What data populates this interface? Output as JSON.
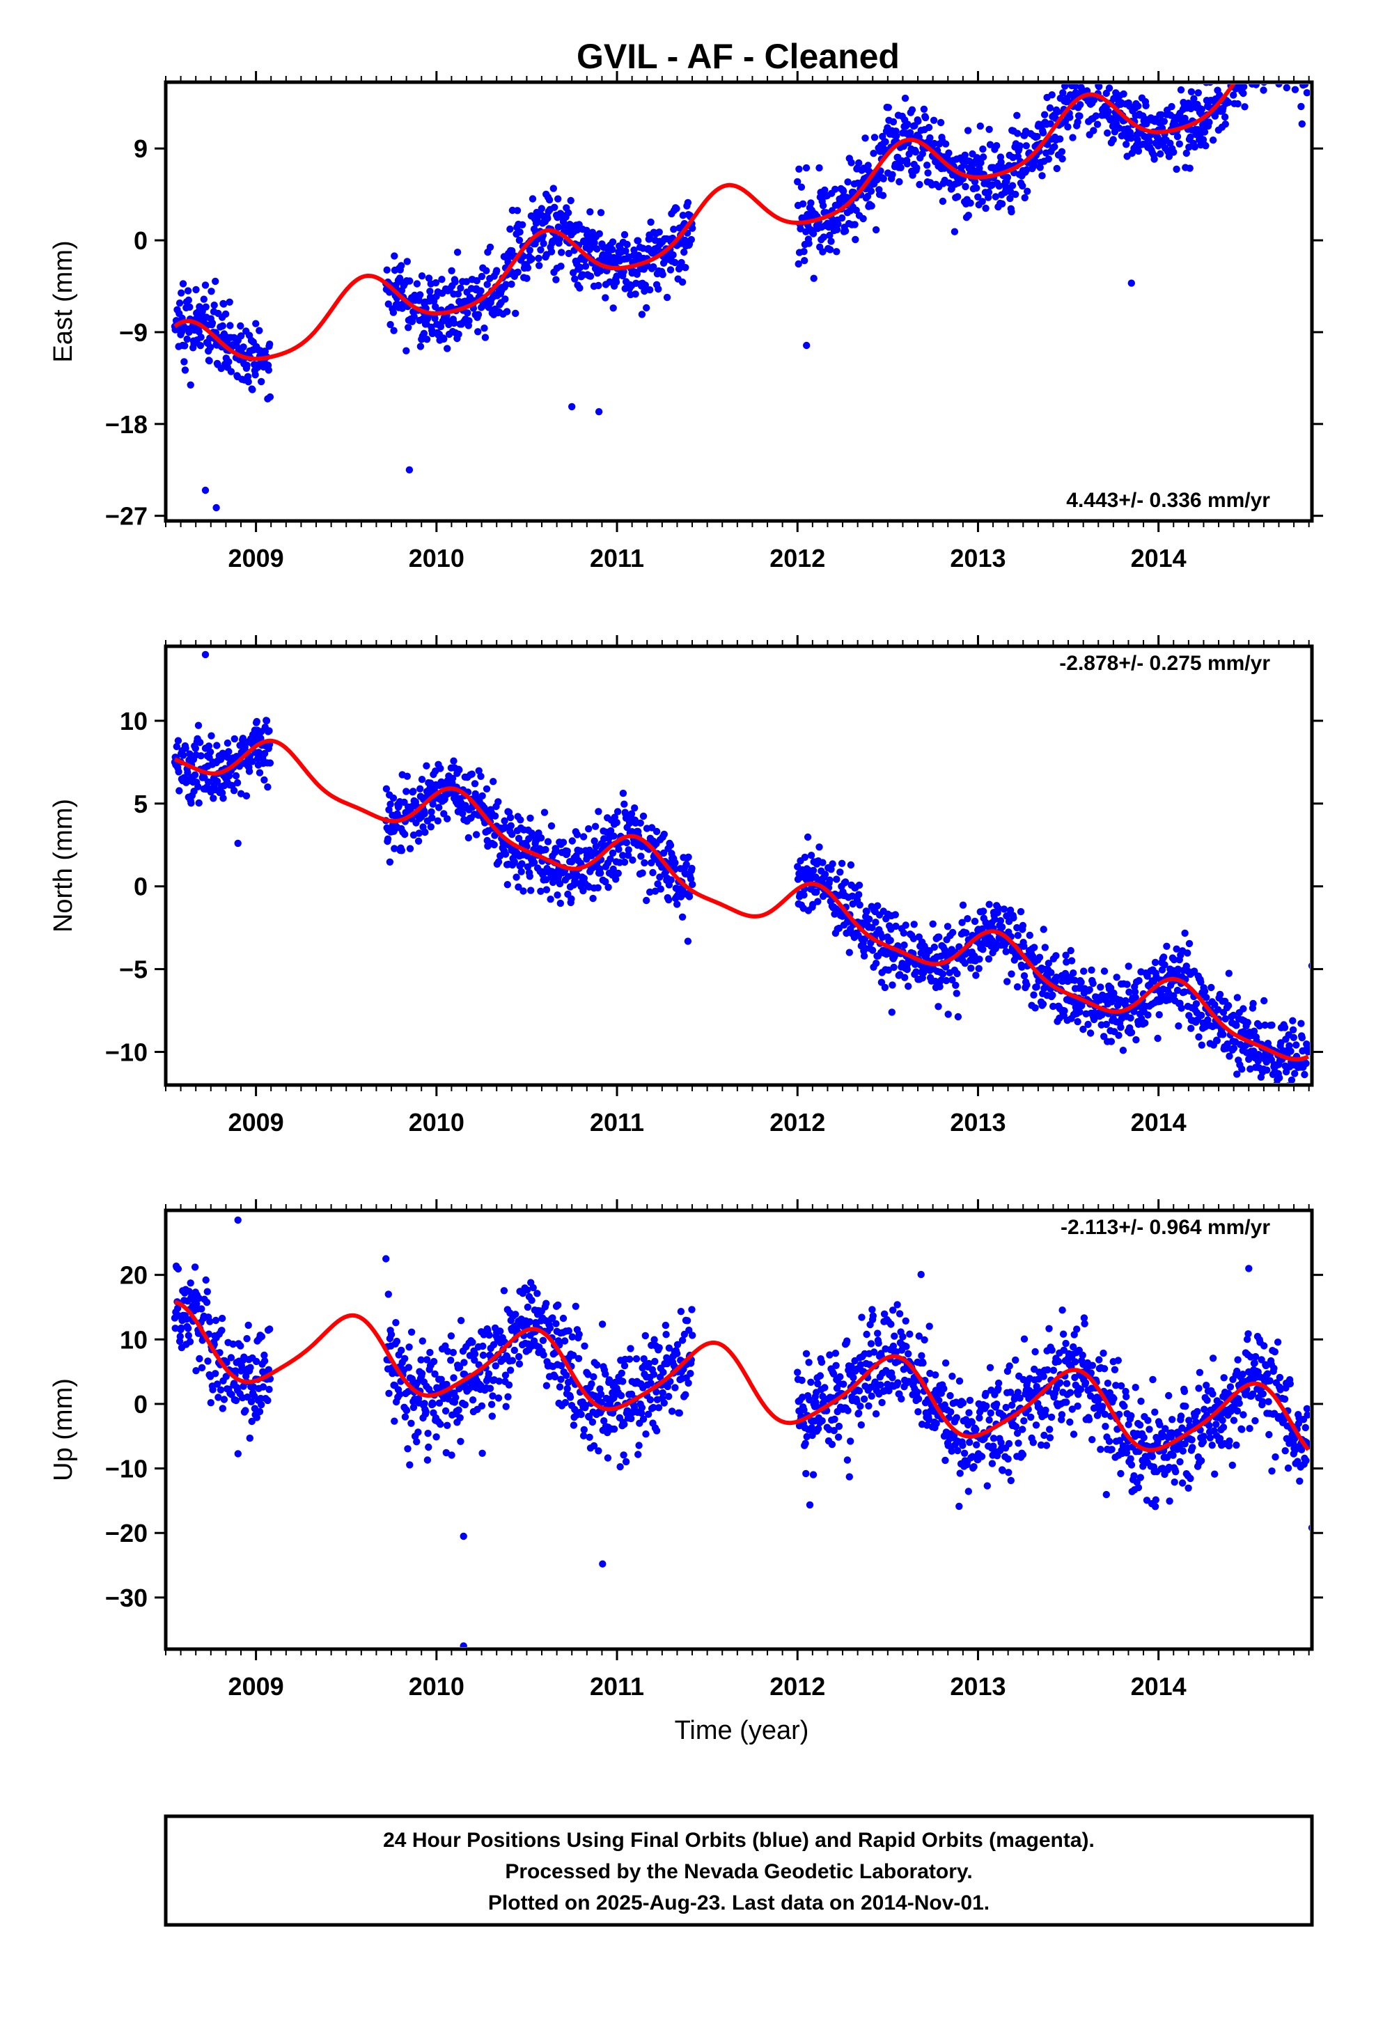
{
  "title": "GVIL  - AF - Cleaned",
  "xlabel": "Time (year)",
  "footer": {
    "lines": [
      "24 Hour Positions Using Final Orbits (blue) and Rapid Orbits (magenta).",
      "Processed by the Nevada Geodetic Laboratory.",
      "Plotted on 2025-Aug-23. Last data on 2014-Nov-01."
    ]
  },
  "colors": {
    "points": "#0000ff",
    "fit": "#ff0000",
    "frame": "#000000"
  },
  "chart_data": [
    {
      "type": "scatter",
      "ylabel": "East (mm)",
      "rate_label": "4.443+/- 0.336 mm/yr",
      "rate_position": "bottom-right",
      "xlim": [
        2008.5,
        2014.85
      ],
      "ylim": [
        -27.5,
        15.5
      ],
      "x_ticks": [
        2009,
        2010,
        2011,
        2012,
        2013,
        2014
      ],
      "y_ticks": [
        9,
        0,
        -9,
        -18,
        -27
      ],
      "fit": {
        "rate": 4.443,
        "offset": 2.5,
        "ann_amp": 2.8,
        "ann_phase": -2.2,
        "semi_amp": 0.5,
        "semi_phase": 0.3,
        "t0": 2011.7
      },
      "data_segments": [
        [
          2008.55,
          2009.08
        ],
        [
          2009.72,
          2011.42
        ],
        [
          2012.0,
          2014.83
        ]
      ],
      "noise": 1.9,
      "outliers": [
        [
          2008.72,
          -24.5
        ],
        [
          2008.78,
          -26.2
        ],
        [
          2009.85,
          -22.5
        ],
        [
          2010.75,
          -16.3
        ],
        [
          2010.9,
          -16.8
        ],
        [
          2012.05,
          -10.3
        ],
        [
          2013.85,
          -4.2
        ]
      ],
      "grid": false,
      "legend": "none"
    },
    {
      "type": "scatter",
      "ylabel": "North (mm)",
      "rate_label": "-2.878+/- 0.275 mm/yr",
      "rate_position": "top-right",
      "xlim": [
        2008.5,
        2014.85
      ],
      "ylim": [
        -12,
        14.5
      ],
      "x_ticks": [
        2009,
        2010,
        2011,
        2012,
        2013,
        2014
      ],
      "y_ticks": [
        10,
        5,
        0,
        -5,
        -10
      ],
      "fit": {
        "rate": -2.878,
        "offset": -0.5,
        "ann_amp": 1.4,
        "ann_phase": 0.8,
        "semi_amp": 0.4,
        "semi_phase": 0.5,
        "t0": 2011.7
      },
      "data_segments": [
        [
          2008.55,
          2009.08
        ],
        [
          2009.72,
          2011.42
        ],
        [
          2012.0,
          2014.83
        ]
      ],
      "noise": 1.1,
      "outliers": [
        [
          2008.72,
          14.0
        ],
        [
          2008.9,
          2.6
        ],
        [
          2014.85,
          -4.8
        ],
        [
          2014.6,
          -11.1
        ]
      ],
      "grid": false,
      "legend": "none"
    },
    {
      "type": "scatter",
      "ylabel": "Up (mm)",
      "rate_label": "-2.113+/- 0.964 mm/yr",
      "rate_position": "top-right",
      "xlim": [
        2008.5,
        2014.85
      ],
      "ylim": [
        -38,
        30
      ],
      "x_ticks": [
        2009,
        2010,
        2011,
        2012,
        2013,
        2014
      ],
      "y_ticks": [
        20,
        10,
        0,
        -10,
        -20,
        -30
      ],
      "fit": {
        "rate": -2.113,
        "offset": 3.0,
        "ann_amp": 5.5,
        "ann_phase": -1.6,
        "semi_amp": 1.0,
        "semi_phase": 0.4,
        "t0": 2011.7
      },
      "data_segments": [
        [
          2008.55,
          2009.08
        ],
        [
          2009.72,
          2011.42
        ],
        [
          2012.0,
          2014.83
        ]
      ],
      "noise": 4.0,
      "outliers": [
        [
          2008.9,
          28.5
        ],
        [
          2009.72,
          22.5
        ],
        [
          2010.15,
          -20.5
        ],
        [
          2010.15,
          -37.5
        ],
        [
          2010.92,
          -24.8
        ],
        [
          2014.5,
          21.0
        ],
        [
          2014.85,
          -19.2
        ]
      ],
      "grid": false,
      "legend": "none"
    }
  ]
}
